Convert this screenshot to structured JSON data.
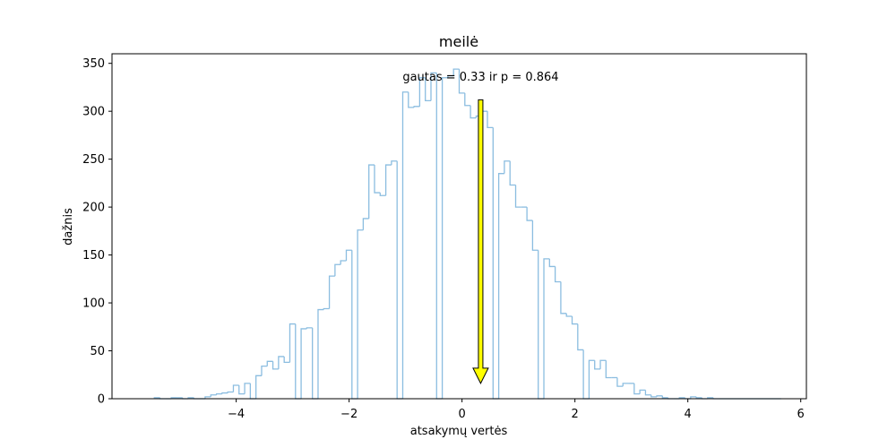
{
  "chart_data": {
    "type": "histogram",
    "title": "meilė",
    "xlabel": "atsakymų vertės",
    "ylabel": "dažnis",
    "xlim": [
      -6.2,
      6.1
    ],
    "ylim": [
      0,
      360
    ],
    "xticks": [
      -4,
      -2,
      0,
      2,
      4,
      6
    ],
    "xtick_labels": [
      "−4",
      "−2",
      "0",
      "2",
      "4",
      "6"
    ],
    "yticks": [
      0,
      50,
      100,
      150,
      200,
      250,
      300,
      350
    ],
    "ytick_labels": [
      "0",
      "50",
      "100",
      "150",
      "200",
      "250",
      "300",
      "350"
    ],
    "grid": false,
    "step_color": "#8bbde0",
    "bin_edges": [
      -5.45,
      -5.35,
      -5.25,
      -5.15,
      -5.05,
      -4.95,
      -4.85,
      -4.75,
      -4.65,
      -4.55,
      -4.45,
      -4.35,
      -4.25,
      -4.15,
      -4.05,
      -3.95,
      -3.85,
      -3.75,
      -3.65,
      -3.55,
      -3.45,
      -3.35,
      -3.25,
      -3.15,
      -3.05,
      -2.95,
      -2.85,
      -2.75,
      -2.65,
      -2.55,
      -2.45,
      -2.35,
      -2.25,
      -2.15,
      -2.05,
      -1.95,
      -1.85,
      -1.75,
      -1.65,
      -1.55,
      -1.45,
      -1.35,
      -1.25,
      -1.15,
      -1.05,
      -0.95,
      -0.85,
      -0.75,
      -0.65,
      -0.55,
      -0.45,
      -0.35,
      -0.25,
      -0.15,
      -0.05,
      0.05,
      0.15,
      0.25,
      0.35,
      0.45,
      0.55,
      0.65,
      0.75,
      0.85,
      0.95,
      1.05,
      1.15,
      1.25,
      1.35,
      1.45,
      1.55,
      1.65,
      1.75,
      1.85,
      1.95,
      2.05,
      2.15,
      2.25,
      2.35,
      2.45,
      2.55,
      2.65,
      2.75,
      2.85,
      2.95,
      3.05,
      3.15,
      3.25,
      3.35,
      3.45,
      3.55,
      3.65,
      3.75,
      3.85,
      3.95,
      4.05,
      4.15,
      4.25,
      4.35,
      4.45,
      4.55,
      4.65,
      4.75,
      4.85,
      4.95,
      5.05,
      5.15,
      5.25,
      5.35,
      5.45,
      5.55,
      5.65
    ],
    "counts": [
      1,
      0,
      0,
      1,
      1,
      0,
      1,
      0,
      0,
      2,
      4,
      5,
      6,
      7,
      14,
      5,
      16,
      0,
      24,
      34,
      39,
      31,
      44,
      38,
      78,
      0,
      73,
      74,
      0,
      93,
      94,
      128,
      140,
      144,
      155,
      0,
      176,
      188,
      244,
      215,
      212,
      244,
      248,
      0,
      320,
      304,
      305,
      335,
      311,
      340,
      0,
      335,
      337,
      344,
      319,
      306,
      293,
      295,
      300,
      283,
      0,
      235,
      248,
      223,
      200,
      200,
      186,
      155,
      0,
      146,
      138,
      122,
      89,
      86,
      78,
      51,
      0,
      40,
      31,
      40,
      22,
      22,
      13,
      16,
      16,
      5,
      9,
      4,
      2,
      3,
      1,
      0,
      0,
      1,
      0,
      2,
      1,
      0,
      1,
      0,
      0,
      0,
      0,
      0,
      0,
      0,
      0,
      0,
      0,
      0,
      0
    ],
    "annotation_text": "gautas = 0.33 ir p = 0.864",
    "observed_value": 0.33,
    "arrow": {
      "x": 0.33,
      "y_start": 312,
      "y_end": 16,
      "fill": "#ffff00",
      "edge": "#000000"
    }
  }
}
